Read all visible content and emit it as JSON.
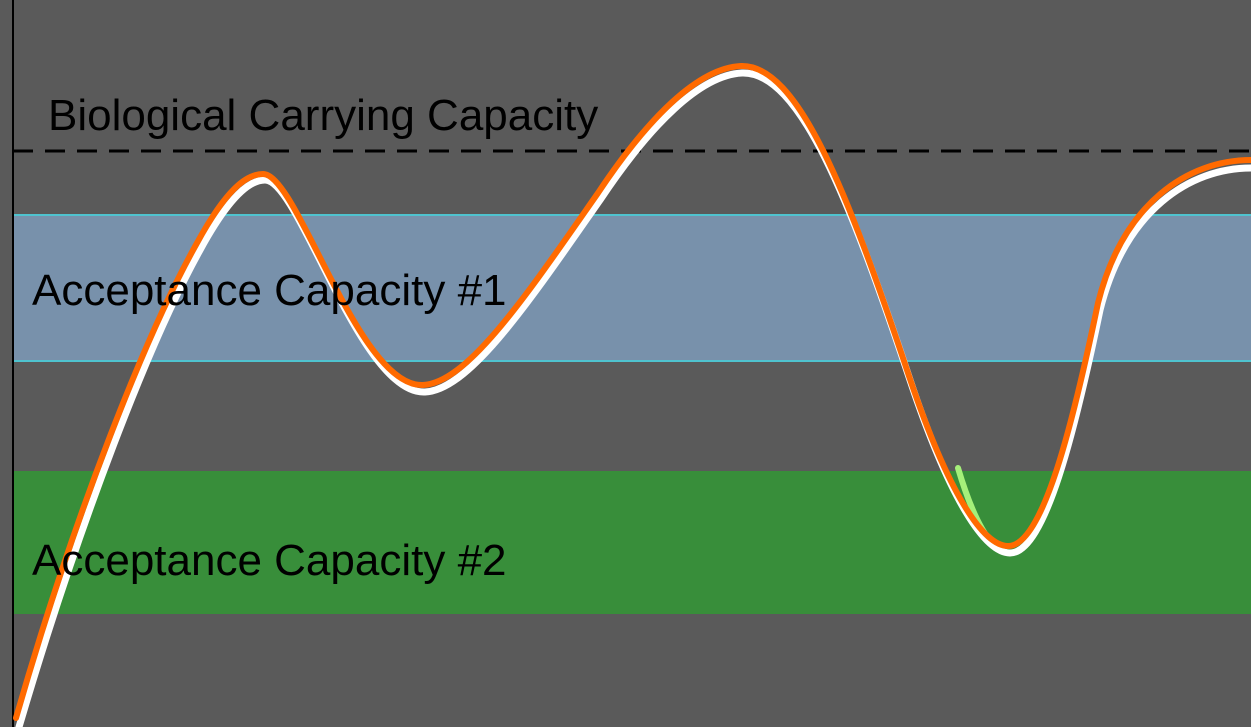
{
  "labels": {
    "biological": "Biological Carrying Capacity",
    "acceptance1": "Acceptance Capacity #1",
    "acceptance2": "Acceptance Capacity #2"
  },
  "colors": {
    "background": "#5a5a5a",
    "band1_fill": "#7891ab",
    "band1_border": "#4fc3cf",
    "band2_fill": "#388e3a",
    "curve_orange": "#ff6a00",
    "curve_white": "#ffffff",
    "curve_green": "#a5f07a",
    "text": "#000000"
  }
}
